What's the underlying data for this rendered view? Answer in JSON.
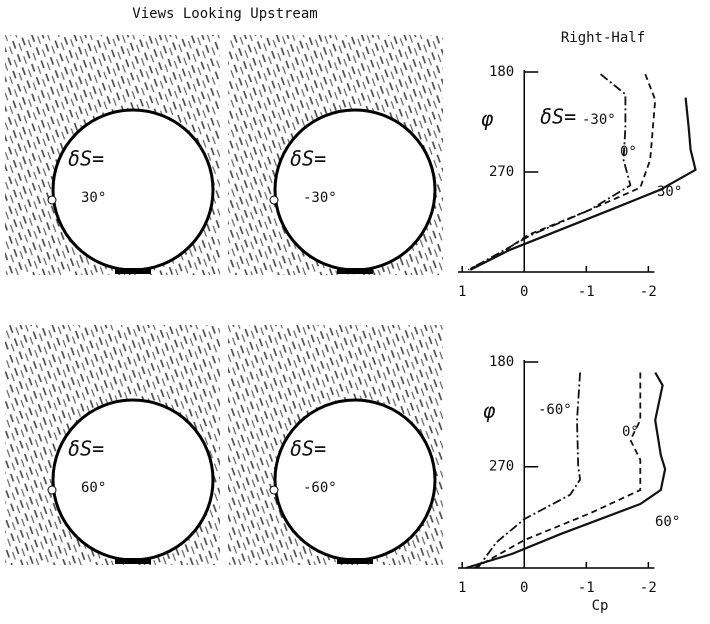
{
  "title": "Views Looking Upstream",
  "panels": [
    {
      "label": "δS=",
      "angle": "30°"
    },
    {
      "label": "δS=",
      "angle": "-30°"
    },
    {
      "label": "δS=",
      "angle": "60°"
    },
    {
      "label": "δS=",
      "angle": "-60°"
    }
  ],
  "chart_data": [
    {
      "type": "line",
      "title": "Right-Half",
      "y_label": "φ",
      "annotation": "δS=",
      "xlim": [
        1.1,
        -2.8
      ],
      "ylim": [
        180,
        360
      ],
      "y_reversed": true,
      "xticks": [
        1,
        0,
        -1,
        -2
      ],
      "yticks": [
        180,
        270
      ],
      "series": [
        {
          "name": "-30°",
          "color": "#111",
          "dash": "dash-dot",
          "y": [
            182,
            200,
            230,
            259,
            282,
            304,
            327,
            345,
            358
          ],
          "values": [
            -1.23,
            -1.63,
            -1.63,
            -1.6,
            -1.71,
            -1.06,
            -0.1,
            0.47,
            0.9
          ]
        },
        {
          "name": "0°",
          "color": "#111",
          "dash": "dashed",
          "y": [
            182,
            205,
            259,
            284,
            304,
            327,
            345,
            358
          ],
          "values": [
            -1.95,
            -2.11,
            -2.03,
            -1.87,
            -1.06,
            -0.05,
            0.42,
            0.9
          ]
        },
        {
          "name": "30°",
          "color": "#111",
          "dash": "solid",
          "y": [
            203,
            230,
            250,
            268,
            286,
            304,
            322,
            340,
            358
          ],
          "values": [
            -2.6,
            -2.65,
            -2.68,
            -2.76,
            -2.19,
            -1.39,
            -0.58,
            0.23,
            0.87
          ]
        }
      ]
    },
    {
      "type": "line",
      "y_label": "φ",
      "x_label": "Cp",
      "xlim": [
        1.1,
        -2.8
      ],
      "ylim": [
        180,
        357
      ],
      "y_reversed": true,
      "xticks": [
        1,
        0,
        -1,
        -2
      ],
      "yticks": [
        180,
        270
      ],
      "series": [
        {
          "name": "-60°",
          "color": "#111",
          "dash": "dash-dot",
          "y": [
            189,
            230,
            270,
            281,
            294,
            315,
            335,
            357
          ],
          "values": [
            -0.9,
            -0.85,
            -0.87,
            -0.9,
            -0.74,
            0,
            0.45,
            0.75
          ]
        },
        {
          "name": "0°",
          "color": "#111",
          "dash": "dashed",
          "y": [
            189,
            230,
            247,
            264,
            290,
            310,
            333,
            357
          ],
          "values": [
            -1.87,
            -1.87,
            -1.71,
            -1.87,
            -1.87,
            -1.06,
            0,
            0.8
          ]
        },
        {
          "name": "60°",
          "color": "#111",
          "dash": "solid",
          "y": [
            189,
            200,
            230,
            260,
            272,
            290,
            302,
            328,
            345,
            357
          ],
          "values": [
            -2.11,
            -2.23,
            -2.11,
            -2.2,
            -2.27,
            -2.2,
            -1.87,
            -0.58,
            0.2,
            0.94
          ]
        }
      ]
    }
  ]
}
